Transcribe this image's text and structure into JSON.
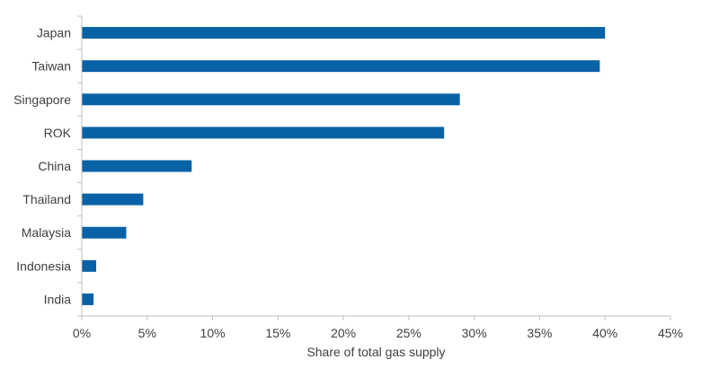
{
  "chart_data": {
    "type": "bar",
    "orientation": "horizontal",
    "title": "",
    "xlabel": "Share of total gas supply",
    "ylabel": "",
    "categories": [
      "Japan",
      "Taiwan",
      "Singapore",
      "ROK",
      "China",
      "Thailand",
      "Malaysia",
      "Indonesia",
      "India"
    ],
    "values": [
      0.4,
      0.396,
      0.289,
      0.277,
      0.084,
      0.047,
      0.034,
      0.011,
      0.009
    ],
    "xlim": [
      0,
      0.45
    ],
    "xticks": [
      0,
      0.05,
      0.1,
      0.15,
      0.2,
      0.25,
      0.3,
      0.35,
      0.4,
      0.45
    ],
    "xtick_labels": [
      "0%",
      "5%",
      "10%",
      "15%",
      "20%",
      "25%",
      "30%",
      "35%",
      "40%",
      "45%"
    ],
    "grid": false,
    "legend": "none",
    "bar_color": "#0A62A6",
    "axis_color": "#BFBFBF",
    "text_color": "#404040"
  }
}
